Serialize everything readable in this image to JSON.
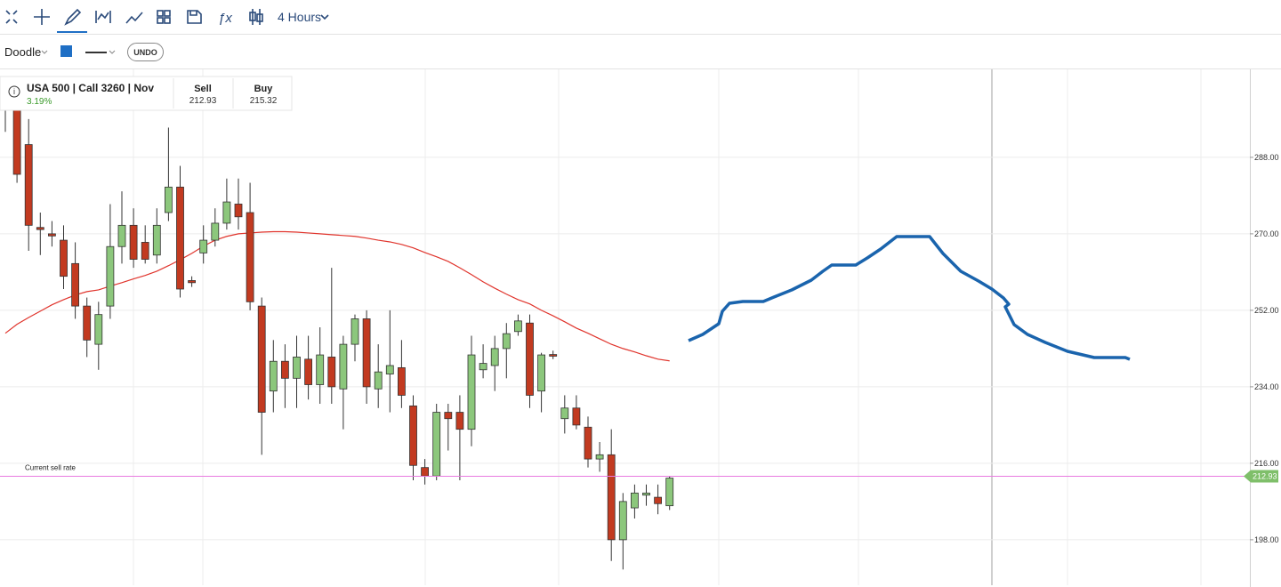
{
  "toolbar": {
    "interval": "4 Hours"
  },
  "drawing_bar": {
    "tool": "Doodle",
    "undo": "UNDO"
  },
  "instrument": {
    "name": "USA 500 | Call 3260 | Nov",
    "change": "3.19%",
    "sell_label": "Sell",
    "sell": "212.93",
    "buy_label": "Buy",
    "buy": "215.32"
  },
  "chart_data": {
    "type": "candlestick",
    "open": [
      300,
      302,
      291,
      271.5,
      270,
      268.5,
      263,
      253,
      244,
      253,
      267,
      272,
      268,
      265,
      275,
      281,
      259,
      265.5,
      268.5,
      272.5,
      277,
      275,
      253,
      233,
      240,
      236,
      240.5,
      234.5,
      241,
      233.5,
      244,
      250,
      233.5,
      237,
      238.5,
      229.5,
      215,
      213,
      228,
      228,
      224,
      238,
      239,
      243,
      247,
      249,
      233,
      241.6,
      226.5,
      229,
      224.5,
      217,
      218,
      198,
      205.5,
      208.5,
      208,
      206
    ],
    "high": [
      305,
      306,
      297,
      275,
      273,
      272,
      268,
      255,
      254,
      277,
      280,
      276,
      272,
      276,
      295,
      286,
      260,
      272,
      276,
      283,
      283,
      282,
      255,
      245,
      244,
      246,
      246,
      248,
      262,
      246,
      251,
      252,
      244,
      252,
      245,
      232,
      217,
      230,
      230,
      232,
      246,
      244,
      246,
      249,
      251,
      251,
      242,
      242.5,
      232,
      232,
      227,
      221,
      224,
      209,
      211,
      211,
      211,
      213
    ],
    "low": [
      294,
      282,
      266,
      265,
      267,
      257,
      250,
      241,
      238,
      250,
      263,
      262,
      263,
      263,
      273,
      255,
      257.5,
      263,
      267,
      271,
      271,
      252,
      218,
      228,
      229,
      229,
      231,
      230,
      230,
      224,
      240,
      230,
      229,
      228,
      229,
      212,
      211,
      212,
      219,
      212,
      220,
      236,
      233,
      236,
      246,
      229,
      228,
      240.5,
      223,
      224,
      215,
      214,
      193,
      191,
      203,
      206,
      204,
      205
    ],
    "close": [
      303,
      284,
      272,
      271,
      269.5,
      260,
      253,
      245,
      251,
      267,
      272,
      264,
      264,
      272,
      281,
      257,
      258.5,
      268.5,
      272.5,
      277.5,
      274,
      254,
      228,
      240,
      236,
      241,
      234.5,
      241.5,
      234,
      244,
      250,
      234,
      237.5,
      239,
      232,
      215.5,
      213,
      228,
      226.5,
      224,
      241.5,
      239.5,
      243,
      246.5,
      249.5,
      232,
      241.5,
      241.2,
      229,
      225,
      217,
      218,
      198,
      207,
      209,
      209,
      206.5,
      212.5
    ],
    "moving_average": [
      246.6,
      248.7,
      250.3,
      251.8,
      253.3,
      254.5,
      255.6,
      256.4,
      256.8,
      257.7,
      258.5,
      259.4,
      260.2,
      261.2,
      262.5,
      263.9,
      265.4,
      267.1,
      268.5,
      269.4,
      270.0,
      270.2,
      270.4,
      270.5,
      270.5,
      270.4,
      270.2,
      270.0,
      269.8,
      269.6,
      269.4,
      269.0,
      268.5,
      268.1,
      267.5,
      266.7,
      265.6,
      264.6,
      263.5,
      262.0,
      260.4,
      258.7,
      257.2,
      255.8,
      254.5,
      253.5,
      252.0,
      250.7,
      249.3,
      247.8,
      246.6,
      245.3,
      244.0,
      243.0,
      242.2,
      241.3,
      240.5,
      240.1
    ],
    "up_color": "#8cc77c",
    "down_color": "#c23a20",
    "ma_color": "#e0342c",
    "ylim": [
      187.3,
      308.7
    ],
    "yticks": [
      {
        "value": 288,
        "label": "288.00"
      },
      {
        "value": 270,
        "label": "270.00"
      },
      {
        "value": 252,
        "label": "252.00"
      },
      {
        "value": 234,
        "label": "234.00"
      },
      {
        "value": 216,
        "label": "216.00"
      },
      {
        "value": 198,
        "label": "198.00"
      }
    ],
    "grid": true,
    "current_rate": {
      "label": "Current sell rate",
      "value": 212.93,
      "color": "#e87be0"
    }
  }
}
